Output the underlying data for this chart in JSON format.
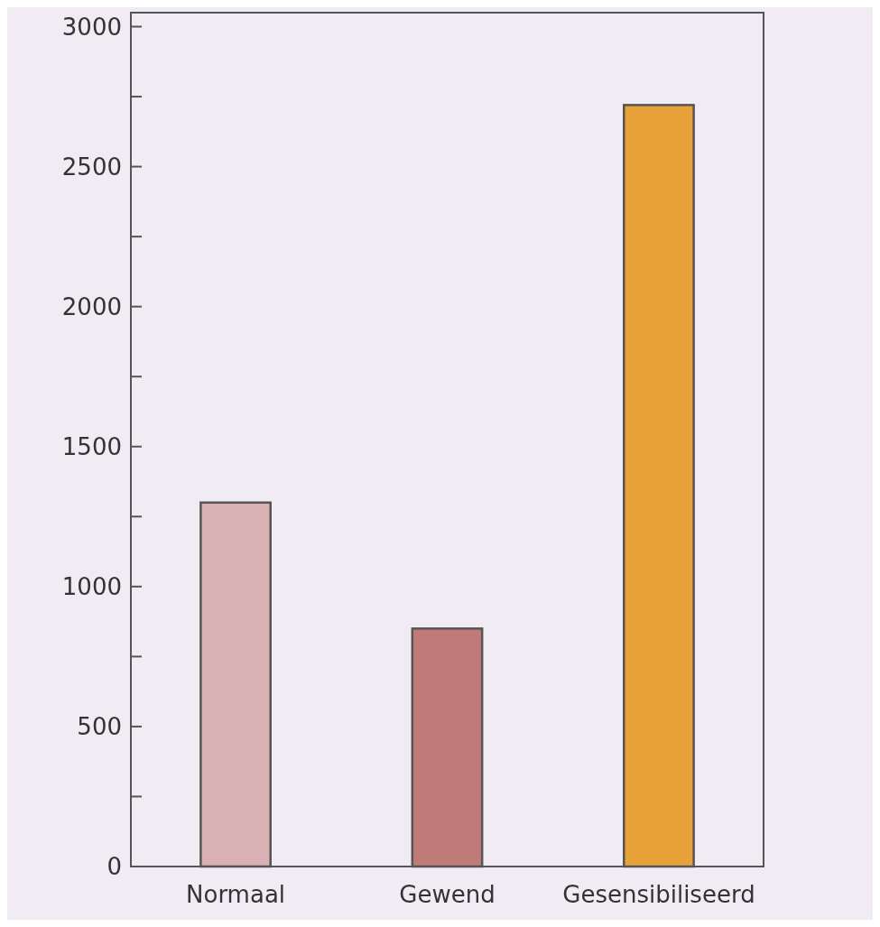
{
  "chart_data": {
    "type": "bar",
    "categories": [
      "Normaal",
      "Gewend",
      "Gesensibiliseerd"
    ],
    "values": [
      1300,
      850,
      2720
    ],
    "colors": [
      "#d9b0b3",
      "#c07a78",
      "#e8a23a"
    ],
    "ylim": [
      0,
      3050
    ],
    "yticks": [
      0,
      {
        "value": 250,
        "label": null
      },
      500,
      {
        "value": 750,
        "label": null
      },
      1000,
      {
        "value": 1250,
        "label": null
      },
      1500,
      {
        "value": 1750,
        "label": null
      },
      2000,
      {
        "value": 2250,
        "label": null
      },
      2500,
      {
        "value": 2750,
        "label": null
      },
      3000
    ],
    "grid": false
  }
}
